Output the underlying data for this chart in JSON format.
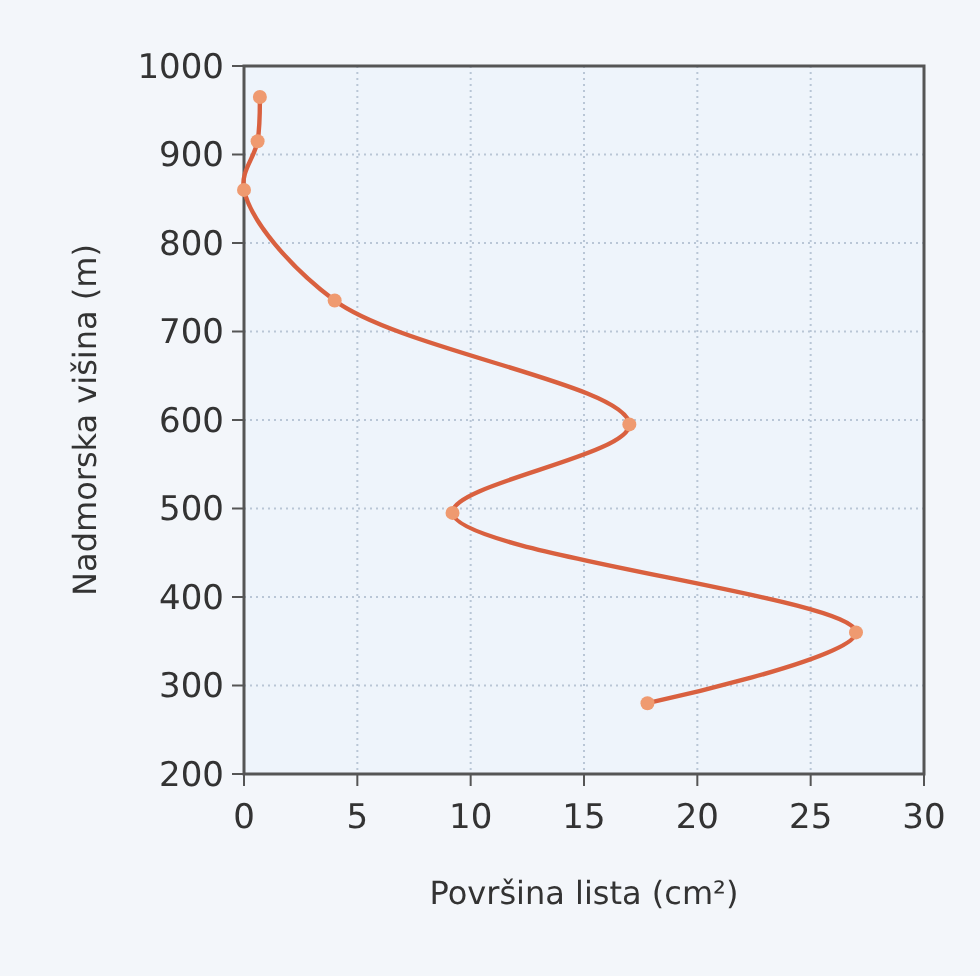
{
  "chart_data": {
    "type": "line",
    "xlabel": "Površina lista (cm²)",
    "ylabel": "Nadmorska višina (m)",
    "x": [
      0.7,
      0.6,
      0,
      4,
      17,
      9.2,
      27,
      17.8
    ],
    "series": [
      {
        "color": "#d9603f",
        "values": [
          965,
          915,
          860,
          735,
          595,
          495,
          360,
          280
        ]
      }
    ],
    "xlim": [
      0,
      30
    ],
    "xticks": [
      0,
      5,
      10,
      15,
      20,
      25,
      30
    ],
    "ylim": [
      200,
      1000
    ],
    "yticks": [
      200,
      300,
      400,
      500,
      600,
      700,
      800,
      900,
      1000
    ],
    "grid": true,
    "marker": "circle",
    "line_style": "solid"
  }
}
